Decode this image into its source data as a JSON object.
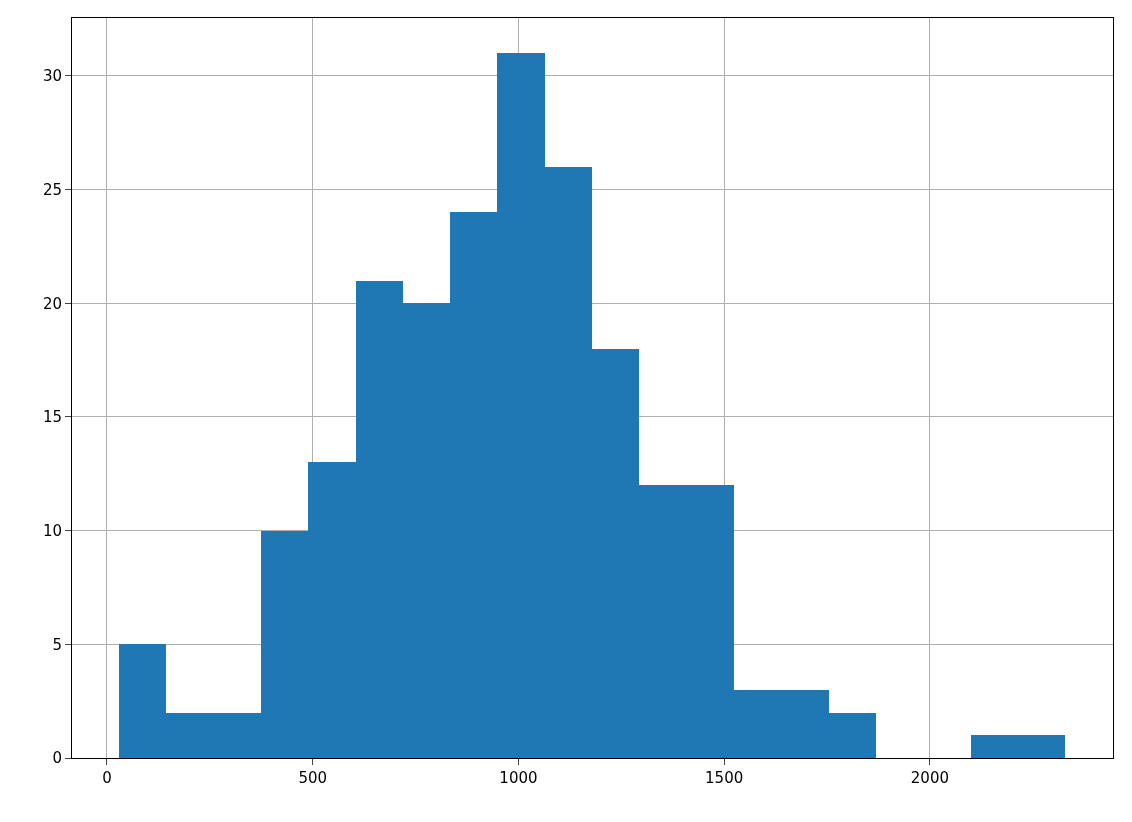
{
  "chart_data": {
    "type": "histogram",
    "bins": [
      29,
      144,
      259,
      374,
      489,
      604,
      719,
      834,
      949,
      1064,
      1179,
      1294,
      1409,
      1524,
      1639,
      1754,
      1869,
      1984,
      2099,
      2214,
      2329
    ],
    "values": [
      5,
      2,
      2,
      10,
      13,
      21,
      20,
      24,
      31,
      26,
      18,
      12,
      12,
      3,
      3,
      2,
      0,
      0,
      1,
      1
    ],
    "color": "#1f77b4",
    "xlim": [
      -85,
      2445
    ],
    "ylim": [
      0,
      32.55
    ],
    "xticks": [
      0,
      500,
      1000,
      1500,
      2000
    ],
    "yticks": [
      0,
      5,
      10,
      15,
      20,
      25,
      30
    ],
    "grid": true
  }
}
